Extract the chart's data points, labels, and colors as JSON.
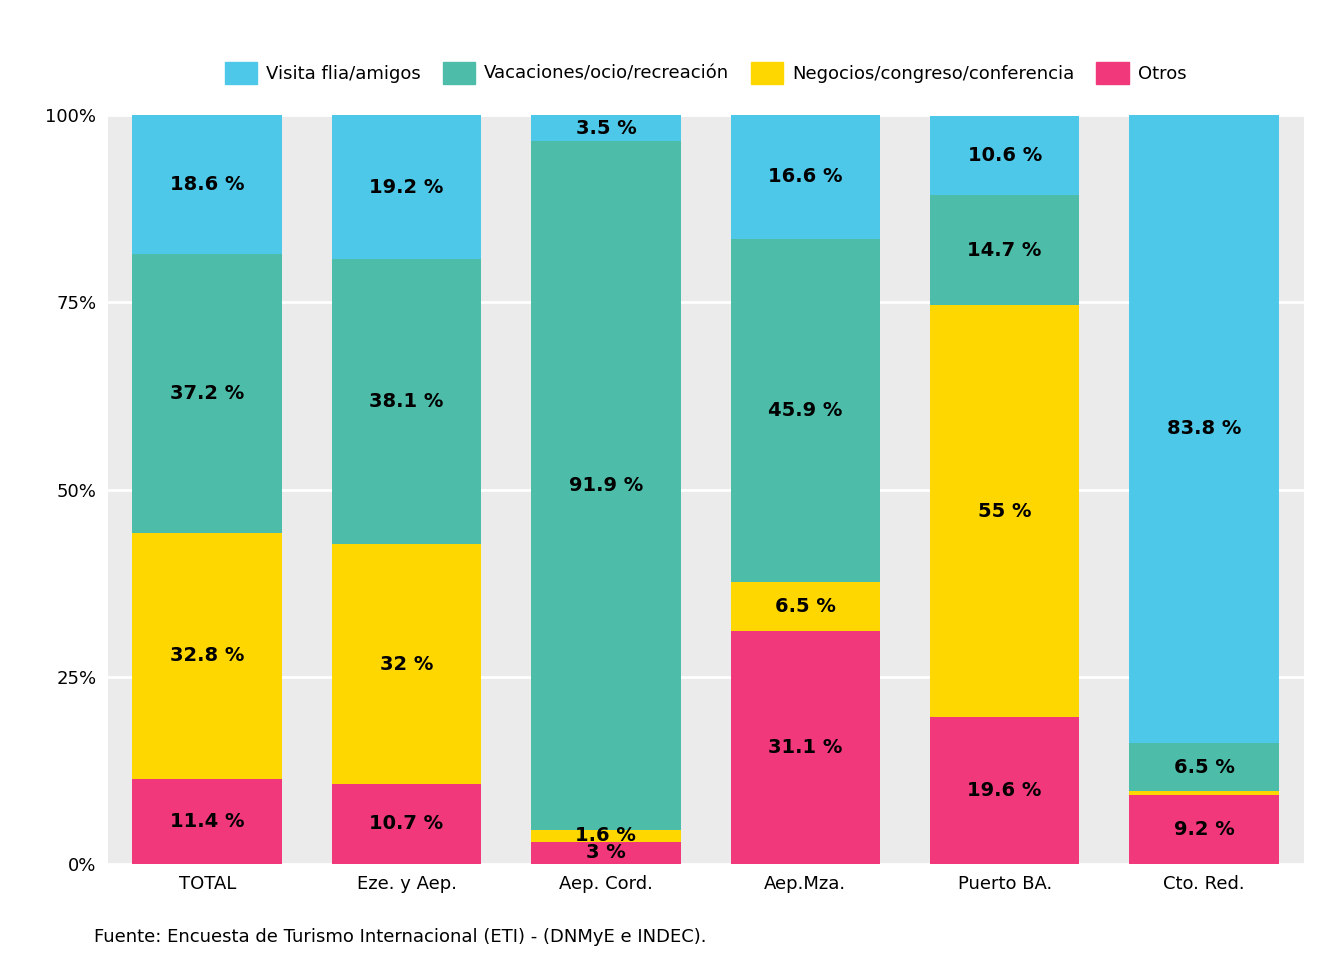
{
  "categories": [
    "TOTAL",
    "Eze. y Aep.",
    "Aep. Cord.",
    "Aep.Mza.",
    "Puerto BA.",
    "Cto. Red."
  ],
  "series": {
    "Otros": [
      11.4,
      10.7,
      3.0,
      31.1,
      19.6,
      9.2
    ],
    "Negocios/congreso/conferencia": [
      32.8,
      32.0,
      1.6,
      6.5,
      55.0,
      0.5
    ],
    "Vacaciones/ocio/recreación": [
      37.2,
      38.1,
      91.9,
      45.9,
      14.7,
      6.5
    ],
    "Visita flia/amigos": [
      18.6,
      19.2,
      3.5,
      16.6,
      10.6,
      83.8
    ]
  },
  "colors": {
    "Otros": "#F0387A",
    "Negocios/congreso/conferencia": "#FFD700",
    "Vacaciones/ocio/recreación": "#4DBDAA",
    "Visita flia/amigos": "#4DC8E8"
  },
  "legend_order": [
    "Visita flia/amigos",
    "Vacaciones/ocio/recreación",
    "Negocios/congreso/conferencia",
    "Otros"
  ],
  "ylabel_ticks": [
    "0%",
    "25%",
    "50%",
    "75%",
    "100%"
  ],
  "ylabel_vals": [
    0,
    25,
    50,
    75,
    100
  ],
  "source": "Fuente: Encuesta de Turismo Internacional (ETI) - (DNMyE e INDEC).",
  "plot_bg_color": "#EBEBEB",
  "fig_bg_color": "#FFFFFF",
  "bar_width": 0.75,
  "label_fontsize": 14,
  "tick_fontsize": 13,
  "legend_fontsize": 13,
  "source_fontsize": 13,
  "grid_color": "#FFFFFF",
  "grid_linewidth": 2.0
}
